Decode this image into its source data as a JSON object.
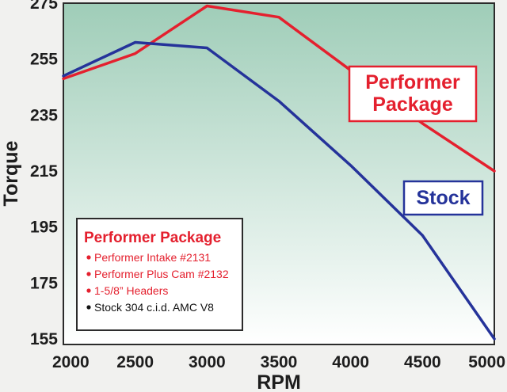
{
  "chart_data": {
    "type": "line",
    "title": "",
    "xlabel": "RPM",
    "ylabel": "Torque",
    "x": [
      2000,
      2500,
      3000,
      3500,
      4000,
      4500,
      5000
    ],
    "xlim": [
      2000,
      5000
    ],
    "ylim": [
      153,
      275
    ],
    "xticks": [
      "2000",
      "2500",
      "3000",
      "3500",
      "4000",
      "4500",
      "5000"
    ],
    "yticks": [
      "155",
      "175",
      "195",
      "215",
      "235",
      "255",
      "275"
    ],
    "grid": false,
    "series": [
      {
        "name": "Performer Package",
        "color": "#e4202e",
        "values": [
          248,
          257,
          274,
          270,
          251,
          232,
          215
        ],
        "label_lines": [
          "Performer",
          "Package"
        ]
      },
      {
        "name": "Stock",
        "color": "#25339a",
        "values": [
          249,
          261,
          259,
          240,
          217,
          192,
          155
        ],
        "label_lines": [
          "Stock"
        ]
      }
    ],
    "legend": {
      "placement": "bottom-left",
      "title": "Performer Package",
      "items": [
        {
          "text": "Performer Intake #2131",
          "color": "#e4202e"
        },
        {
          "text": "Performer Plus Cam #2132",
          "color": "#e4202e"
        },
        {
          "text": "1-5/8” Headers",
          "color": "#e4202e"
        },
        {
          "text": "Stock 304 c.i.d. AMC V8",
          "color": "#111111"
        }
      ]
    },
    "background_gradient": [
      "#ffffff",
      "#9fcdb8"
    ]
  }
}
